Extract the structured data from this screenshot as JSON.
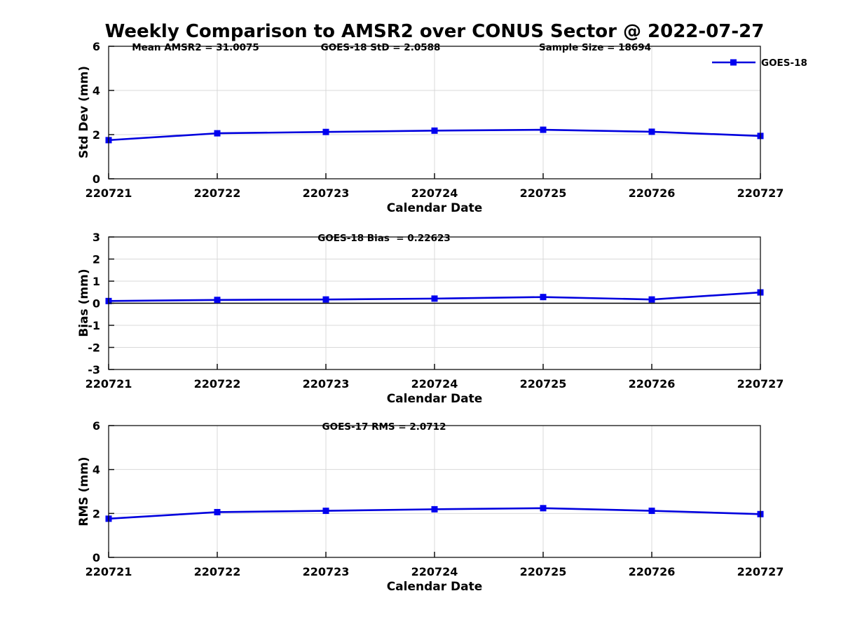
{
  "title": "Weekly Comparison to AMSR2 over CONUS Sector @ 2022-07-27",
  "colors": {
    "line": "#0000DE",
    "marker": "#0000F0",
    "grid": "#D9D9D9",
    "axis": "#111111",
    "zero_line": "#000000",
    "background": "#FFFFFF",
    "text": "#000000"
  },
  "chart_data": [
    {
      "type": "line",
      "categories": [
        "220721",
        "220722",
        "220723",
        "220724",
        "220725",
        "220726",
        "220727"
      ],
      "series": [
        {
          "name": "GOES-18",
          "values": [
            1.75,
            2.06,
            2.12,
            2.18,
            2.22,
            2.13,
            1.94
          ]
        }
      ],
      "title": "",
      "xlabel": "Calendar Date",
      "ylabel": "Std Dev (mm)",
      "ylim": [
        0,
        6
      ],
      "yticks": [
        "0",
        "2",
        "4",
        "6"
      ],
      "grid": true,
      "zero_line": false,
      "annotations": [
        "Mean AMSR2 = 31.0075",
        "GOES-18 StD = 2.0588",
        "Sample Size = 18694"
      ],
      "legend": {
        "label": "GOES-18",
        "position": "top-right",
        "marker": "square"
      }
    },
    {
      "type": "line",
      "categories": [
        "220721",
        "220722",
        "220723",
        "220724",
        "220725",
        "220726",
        "220727"
      ],
      "series": [
        {
          "name": "GOES-18",
          "values": [
            0.1,
            0.15,
            0.17,
            0.21,
            0.28,
            0.17,
            0.49
          ]
        }
      ],
      "title": "",
      "xlabel": "Calendar Date",
      "ylabel": "Bias (mm)",
      "ylim": [
        -3,
        3
      ],
      "yticks": [
        "-3",
        "-2",
        "-1",
        "0",
        "1",
        "2",
        "3"
      ],
      "grid": true,
      "zero_line": true,
      "annotations": [
        "GOES-18 Bias  = 0.22623"
      ]
    },
    {
      "type": "line",
      "categories": [
        "220721",
        "220722",
        "220723",
        "220724",
        "220725",
        "220726",
        "220727"
      ],
      "series": [
        {
          "name": "GOES-18",
          "values": [
            1.76,
            2.06,
            2.12,
            2.19,
            2.24,
            2.12,
            1.97
          ]
        }
      ],
      "title": "",
      "xlabel": "Calendar Date",
      "ylabel": "RMS (mm)",
      "ylim": [
        0,
        6
      ],
      "yticks": [
        "0",
        "2",
        "4",
        "6"
      ],
      "grid": true,
      "zero_line": false,
      "annotations": [
        "GOES-17 RMS = 2.0712"
      ]
    }
  ]
}
